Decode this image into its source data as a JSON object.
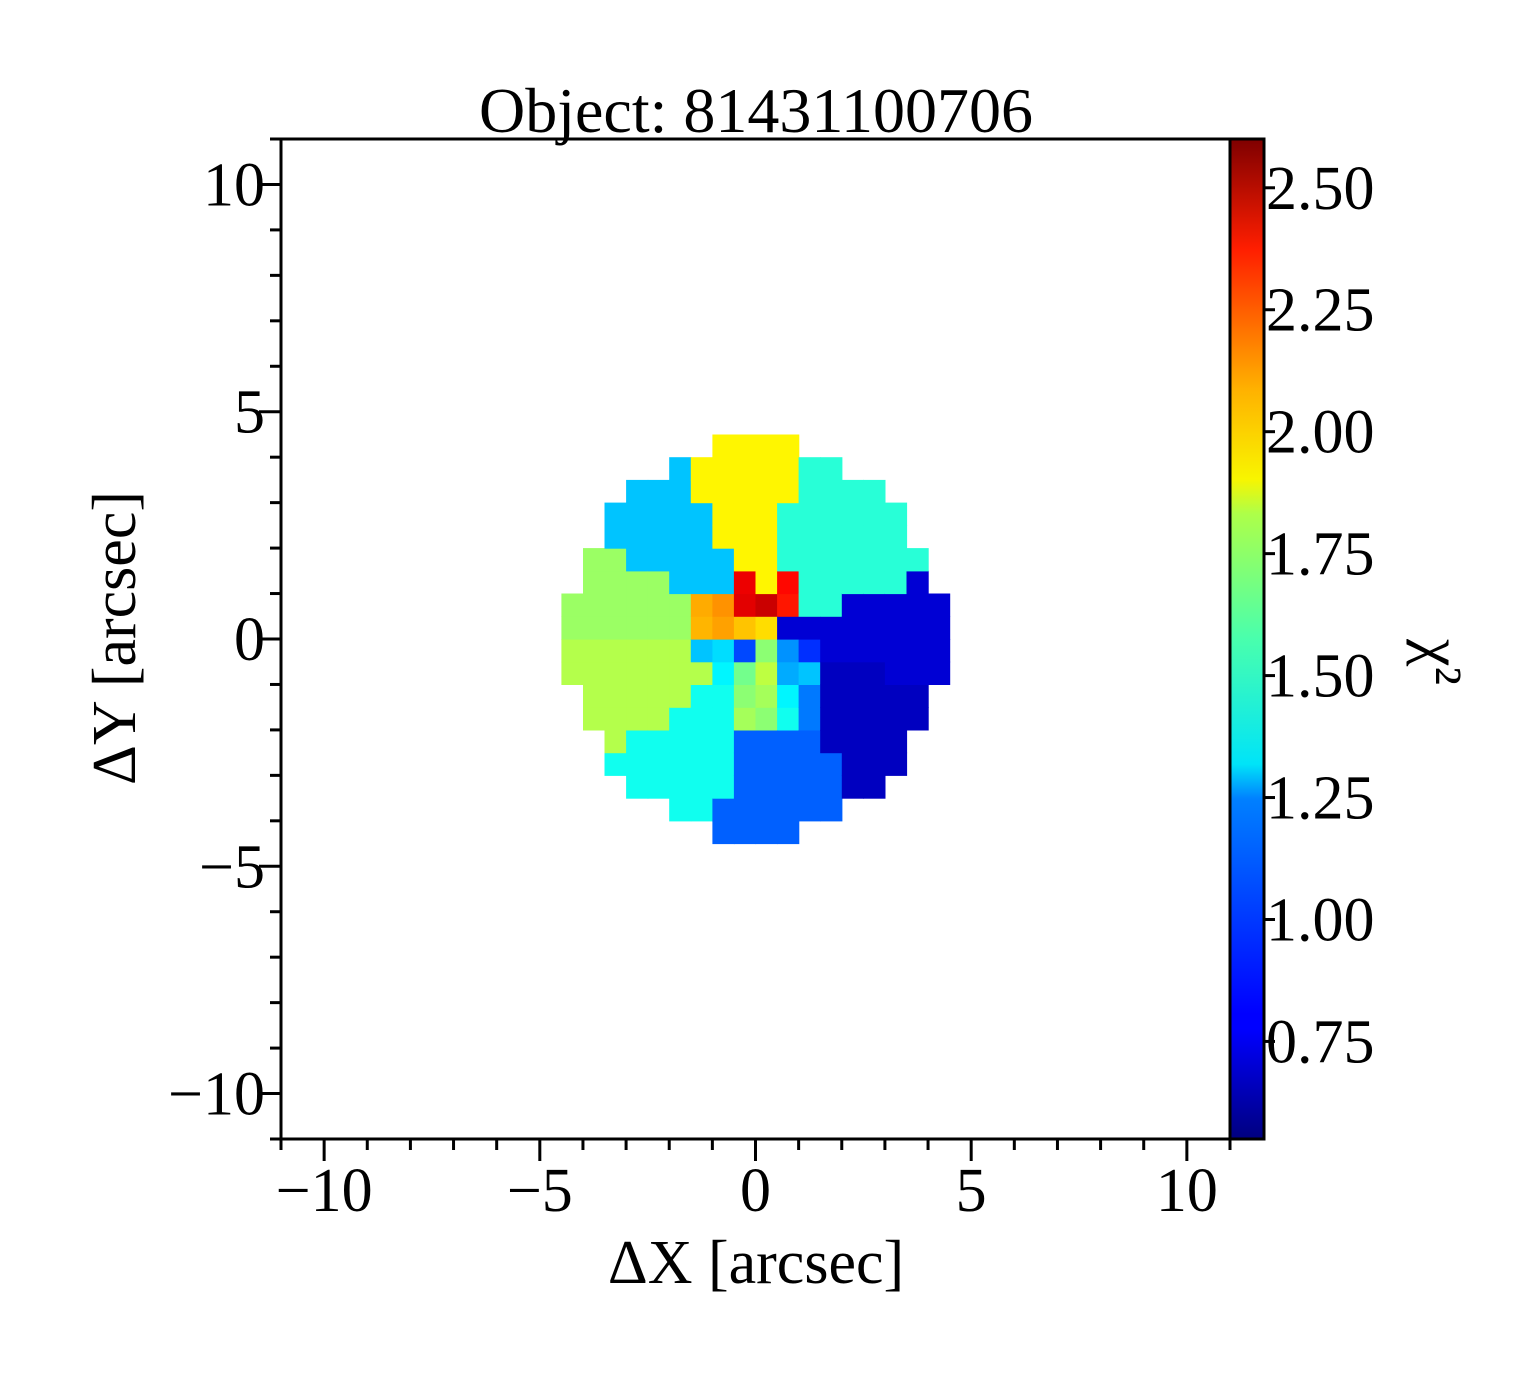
{
  "chart_data": {
    "type": "heatmap",
    "title": "Object: 81431100706",
    "xlabel": "ΔX [arcsec]",
    "ylabel": "ΔY [arcsec]",
    "colorbar_label": "χ²",
    "colormap": "jet",
    "xlim": [
      -11,
      11
    ],
    "ylim": [
      -11,
      11
    ],
    "clim": [
      0.55,
      2.6
    ],
    "xticks": [
      -10,
      -5,
      0,
      5,
      10
    ],
    "yticks": [
      -10,
      -5,
      0,
      5,
      10
    ],
    "xtick_labels": [
      "−10",
      "−5",
      "0",
      "5",
      "10"
    ],
    "ytick_labels": [
      "−10",
      "−5",
      "0",
      "5",
      "10"
    ],
    "colorbar_ticks": [
      0.75,
      1.0,
      1.25,
      1.5,
      1.75,
      2.0,
      2.25,
      2.5
    ],
    "colorbar_tick_labels": [
      "0.75",
      "1.00",
      "1.25",
      "1.50",
      "1.75",
      "2.00",
      "2.25",
      "2.50"
    ],
    "grid": false,
    "field": {
      "center": [
        0.0,
        0.0
      ],
      "radius": 4.35,
      "pixel_size": 0.5,
      "regions": [
        {
          "name": "north",
          "angle_range": [
            75,
            112
          ],
          "value": 1.85
        },
        {
          "name": "north-west",
          "angle_range": [
            112,
            150
          ],
          "value": 1.2
        },
        {
          "name": "west-upper",
          "angle_range": [
            150,
            180
          ],
          "value": 1.63
        },
        {
          "name": "west-lower",
          "angle_range": [
            180,
            218
          ],
          "value": 1.68
        },
        {
          "name": "south-west",
          "angle_range": [
            218,
            258
          ],
          "value": 1.35
        },
        {
          "name": "south",
          "angle_range": [
            258,
            303
          ],
          "value": 1.0
        },
        {
          "name": "south-east",
          "angle_range": [
            303,
            345
          ],
          "value": 0.68
        },
        {
          "name": "east",
          "angle_range": [
            345,
            380
          ],
          "value": 0.72
        },
        {
          "name": "north-east",
          "angle_range": [
            20,
            75
          ],
          "value": 1.4
        }
      ],
      "core_pixels": [
        {
          "x": -0.25,
          "y": 1.25,
          "value": 2.38
        },
        {
          "x": 0.75,
          "y": 1.25,
          "value": 2.33
        },
        {
          "x": 0.25,
          "y": 0.75,
          "value": 2.45
        },
        {
          "x": -0.25,
          "y": 0.75,
          "value": 2.4
        },
        {
          "x": 0.75,
          "y": 0.75,
          "value": 2.3
        },
        {
          "x": -1.25,
          "y": 0.75,
          "value": 2.0
        },
        {
          "x": -0.75,
          "y": 0.75,
          "value": 2.05
        },
        {
          "x": -1.25,
          "y": 0.25,
          "value": 1.98
        },
        {
          "x": -0.75,
          "y": 0.25,
          "value": 2.02
        },
        {
          "x": -0.25,
          "y": 0.25,
          "value": 1.95
        },
        {
          "x": 0.25,
          "y": 0.25,
          "value": 1.9
        },
        {
          "x": -1.25,
          "y": -0.25,
          "value": 1.2
        },
        {
          "x": -0.75,
          "y": -0.25,
          "value": 1.25
        },
        {
          "x": -0.25,
          "y": -0.25,
          "value": 0.95
        },
        {
          "x": 0.25,
          "y": -0.25,
          "value": 1.6
        },
        {
          "x": 0.75,
          "y": -0.25,
          "value": 1.1
        },
        {
          "x": 1.25,
          "y": -0.25,
          "value": 0.9
        },
        {
          "x": -0.75,
          "y": -0.75,
          "value": 1.3
        },
        {
          "x": -0.25,
          "y": -0.75,
          "value": 1.55
        },
        {
          "x": 0.25,
          "y": -0.75,
          "value": 1.7
        },
        {
          "x": 0.75,
          "y": -0.75,
          "value": 1.15
        },
        {
          "x": 1.25,
          "y": -0.75,
          "value": 1.2
        },
        {
          "x": -0.25,
          "y": -1.25,
          "value": 1.6
        },
        {
          "x": 0.25,
          "y": -1.25,
          "value": 1.65
        },
        {
          "x": 0.75,
          "y": -1.25,
          "value": 1.3
        },
        {
          "x": 1.25,
          "y": -1.25,
          "value": 1.05
        },
        {
          "x": -0.25,
          "y": -1.75,
          "value": 1.65
        },
        {
          "x": 0.25,
          "y": -1.75,
          "value": 1.6
        },
        {
          "x": 0.75,
          "y": -1.75,
          "value": 1.35
        },
        {
          "x": 1.25,
          "y": -1.75,
          "value": 1.05
        }
      ]
    }
  }
}
